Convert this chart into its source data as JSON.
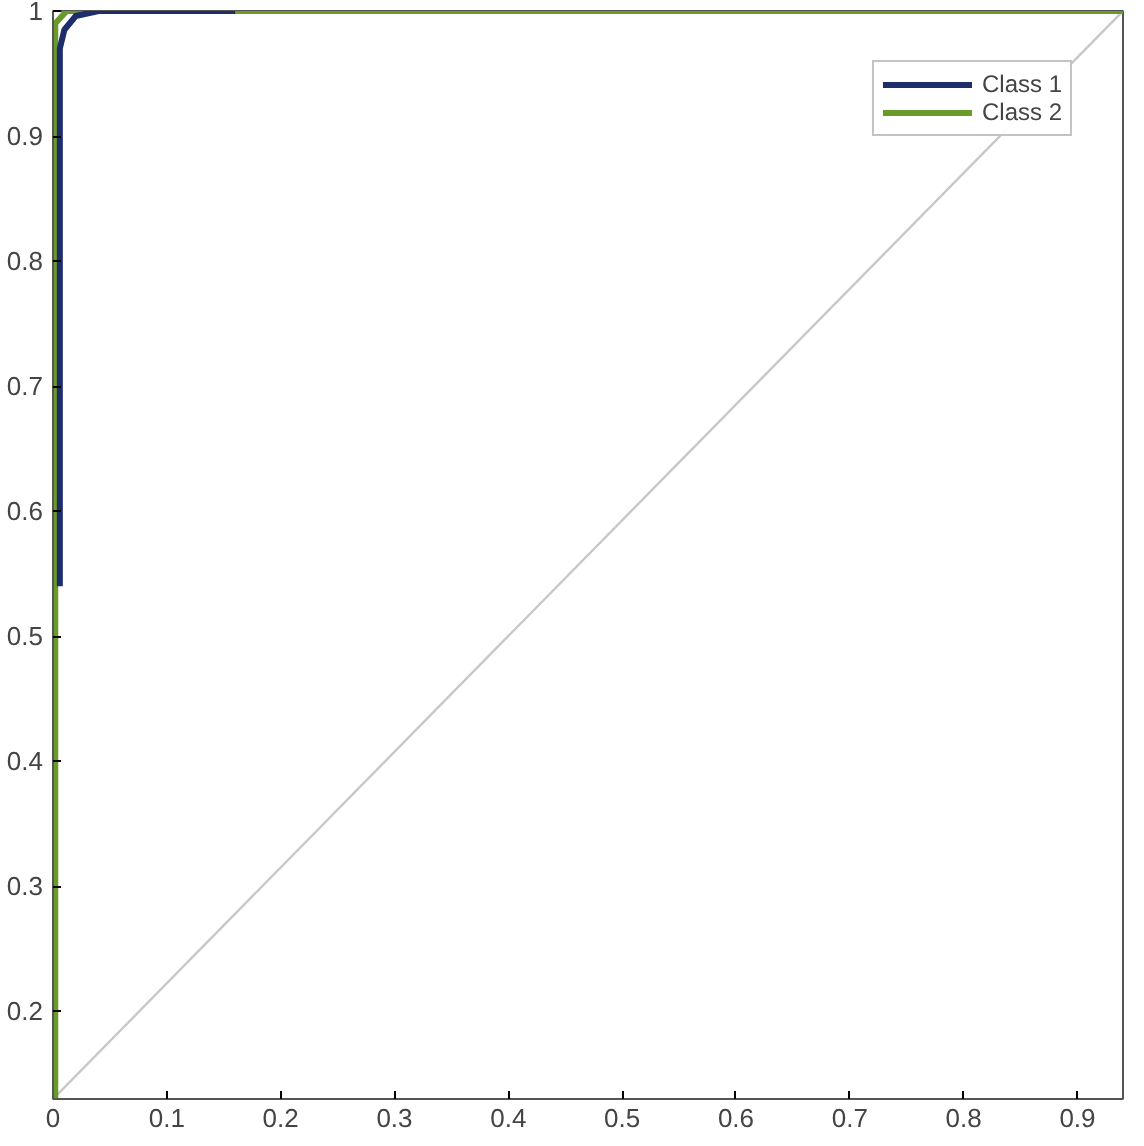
{
  "chart_data": {
    "type": "line",
    "xlim": [
      0,
      0.94
    ],
    "ylim": [
      0.13,
      1
    ],
    "xticks": [
      0,
      0.1,
      0.2,
      0.3,
      0.4,
      0.5,
      0.6,
      0.7,
      0.8,
      0.9
    ],
    "yticks": [
      0.2,
      0.3,
      0.4,
      0.5,
      0.6,
      0.7,
      0.8,
      0.9,
      1
    ],
    "grid": false,
    "legend": "top right",
    "marker": "none",
    "line_style": "solid",
    "series": [
      {
        "color": "#c8c8c8",
        "x": [
          0,
          0.94
        ],
        "values": [
          0.13,
          1
        ]
      },
      {
        "name": "Class 2",
        "color": "#6a9a2a",
        "x": [
          0.002,
          0.002,
          0.012,
          0.94
        ],
        "values": [
          0.13,
          0.99,
          1,
          1
        ]
      },
      {
        "name": "Class 1",
        "color": "#1e2d6b",
        "x": [
          0.006,
          0.006,
          0.01,
          0.02,
          0.04,
          0.16
        ],
        "values": [
          0.54,
          0.97,
          0.985,
          0.996,
          1,
          1
        ]
      }
    ]
  }
}
